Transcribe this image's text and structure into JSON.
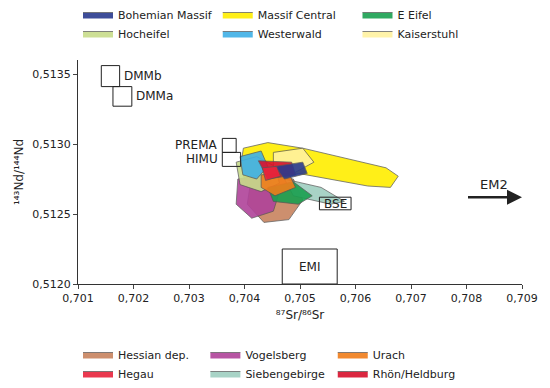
{
  "chart_data": {
    "type": "scatter",
    "x_label": "⁸⁷Sr/⁸⁶Sr",
    "y_label": "¹⁴³Nd/¹⁴⁴Nd",
    "xlim": [
      0.701,
      0.709
    ],
    "ylim": [
      0.512,
      0.5136
    ],
    "xticks": [
      {
        "value": 0.701,
        "label": "0,701"
      },
      {
        "value": 0.702,
        "label": "0,702"
      },
      {
        "value": 0.703,
        "label": "0,703"
      },
      {
        "value": 0.704,
        "label": "0,704"
      },
      {
        "value": 0.705,
        "label": "0,705"
      },
      {
        "value": 0.706,
        "label": "0,706"
      },
      {
        "value": 0.707,
        "label": "0,707"
      },
      {
        "value": 0.708,
        "label": "0,708"
      },
      {
        "value": 0.709,
        "label": "0,709"
      }
    ],
    "yticks": [
      {
        "value": 0.512,
        "label": "0,5120"
      },
      {
        "value": 0.5125,
        "label": "0,5125"
      },
      {
        "value": 0.513,
        "label": "0,5130"
      },
      {
        "value": 0.5135,
        "label": "0,5135"
      }
    ],
    "grid": false,
    "boxes": [
      {
        "label": "DMMb",
        "x": [
          0.70142,
          0.70175
        ],
        "y": [
          0.51341,
          0.51356
        ]
      },
      {
        "label": "DMMa",
        "x": [
          0.70163,
          0.70197
        ],
        "y": [
          0.51327,
          0.51341
        ]
      },
      {
        "label": "PREMA",
        "x": [
          0.7036,
          0.70385
        ],
        "y": [
          0.51294,
          0.51304
        ]
      },
      {
        "label": "HIMU",
        "x": [
          0.7036,
          0.70393
        ],
        "y": [
          0.51284,
          0.51294
        ]
      },
      {
        "label": "BSE",
        "x": [
          0.70535,
          0.70592
        ],
        "y": [
          0.51253,
          0.51262
        ]
      },
      {
        "label": "EMI",
        "x": [
          0.70468,
          0.70567
        ],
        "y": [
          0.512,
          0.51225
        ]
      }
    ],
    "arrows": [
      {
        "label": "EM2",
        "x": [
          0.708,
          0.709
        ],
        "y": 0.51262
      }
    ],
    "series": [
      {
        "name": "Bohemian Massif",
        "color": "#2a3a8f",
        "legend": "top",
        "x": [
          0.70455,
          0.70505,
          0.70513,
          0.70472
        ],
        "y": [
          0.51284,
          0.51287,
          0.51279,
          0.51275
        ]
      },
      {
        "name": "Massif Central",
        "color": "#ffee00",
        "legend": "top",
        "x": [
          0.70398,
          0.70442,
          0.70505,
          0.7058,
          0.70655,
          0.70677,
          0.70663,
          0.70622,
          0.70555,
          0.70497,
          0.70447,
          0.70405,
          0.70393
        ],
        "y": [
          0.51297,
          0.51301,
          0.51297,
          0.5129,
          0.51283,
          0.51277,
          0.51269,
          0.5127,
          0.51275,
          0.51279,
          0.51272,
          0.51269,
          0.51284
        ]
      },
      {
        "name": "E Eifel",
        "color": "#1aa050",
        "legend": "top",
        "x": [
          0.70442,
          0.70488,
          0.70522,
          0.70497,
          0.70452
        ],
        "y": [
          0.51269,
          0.51273,
          0.51263,
          0.51257,
          0.51259
        ]
      },
      {
        "name": "Hocheifel",
        "color": "#c8dc8a",
        "legend": "top",
        "x": [
          0.70385,
          0.70422,
          0.70455,
          0.70463,
          0.7043,
          0.70392
        ],
        "y": [
          0.51287,
          0.51291,
          0.51284,
          0.51272,
          0.51266,
          0.51271
        ]
      },
      {
        "name": "Westerwald",
        "color": "#3fb0e6",
        "legend": "top",
        "x": [
          0.70392,
          0.7043,
          0.70442,
          0.70422,
          0.70397
        ],
        "y": [
          0.51291,
          0.51295,
          0.51284,
          0.51275,
          0.51278
        ]
      },
      {
        "name": "Kaiserstuhl",
        "color": "#fff2a0",
        "legend": "top",
        "x": [
          0.70452,
          0.70505,
          0.70525,
          0.70488,
          0.70452
        ],
        "y": [
          0.51294,
          0.51297,
          0.51287,
          0.51279,
          0.51284
        ]
      },
      {
        "name": "Hessian dep.",
        "color": "#c8835f",
        "legend": "bottom",
        "x": [
          0.70413,
          0.70488,
          0.70505,
          0.7048,
          0.70435,
          0.70405
        ],
        "y": [
          0.51278,
          0.51275,
          0.5126,
          0.51246,
          0.51244,
          0.51257
        ]
      },
      {
        "name": "Vogelsberg",
        "color": "#b0439a",
        "legend": "bottom",
        "x": [
          0.70388,
          0.70438,
          0.70463,
          0.70452,
          0.70413,
          0.70385
        ],
        "y": [
          0.51275,
          0.51278,
          0.51266,
          0.51252,
          0.51247,
          0.51257
        ]
      },
      {
        "name": "Urach",
        "color": "#f07d1a",
        "legend": "bottom",
        "x": [
          0.7043,
          0.7048,
          0.70492,
          0.70455,
          0.7043
        ],
        "y": [
          0.51278,
          0.51279,
          0.51269,
          0.51263,
          0.51269
        ]
      },
      {
        "name": "Hegau",
        "color": "#e8243c",
        "legend": "bottom",
        "x": [
          0.70432,
          0.70458,
          0.70465,
          0.70438
        ],
        "y": [
          0.51283,
          0.51284,
          0.51277,
          0.51274
        ]
      },
      {
        "name": "Siebengebirge",
        "color": "#9fcfc0",
        "legend": "bottom",
        "x": [
          0.70472,
          0.70538,
          0.7058,
          0.70555,
          0.70488
        ],
        "y": [
          0.51275,
          0.51269,
          0.51259,
          0.51257,
          0.51263
        ]
      },
      {
        "name": "Rhön/Heldburg",
        "color": "#d8102c",
        "legend": "bottom",
        "x": [
          0.70425,
          0.70485,
          0.70492,
          0.70442
        ],
        "y": [
          0.51288,
          0.51287,
          0.51278,
          0.51275
        ]
      }
    ]
  }
}
